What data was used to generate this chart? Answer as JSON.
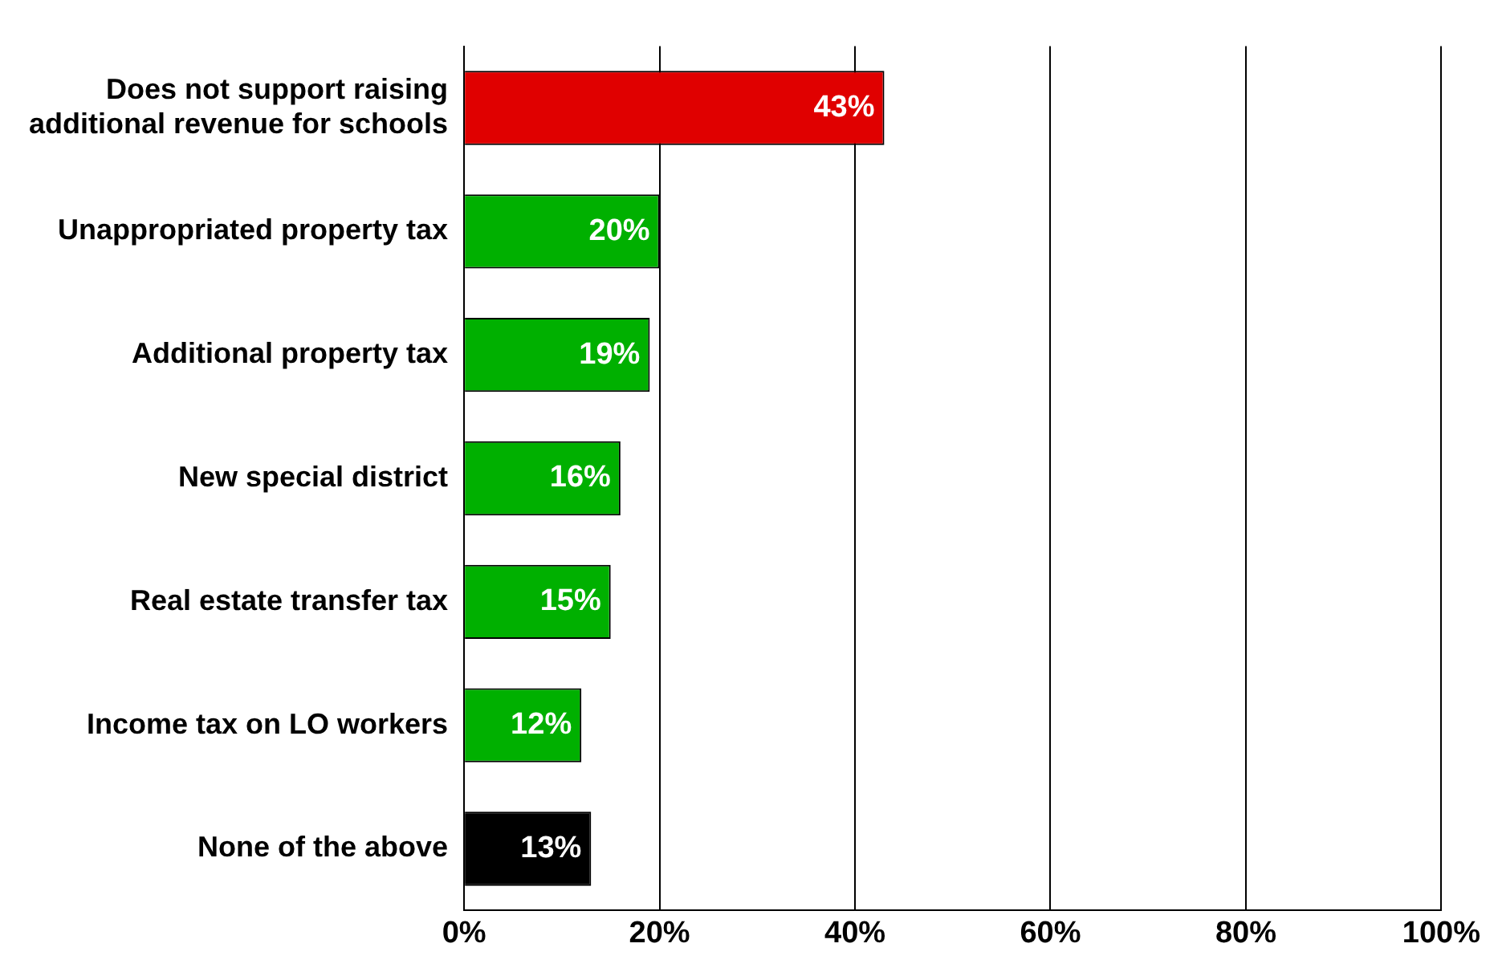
{
  "chart_data": {
    "type": "bar",
    "orientation": "horizontal",
    "categories": [
      "Does not support raising additional revenue for schools",
      "Unappropriated property tax",
      "Additional property tax",
      "New special district",
      "Real estate transfer tax",
      "Income tax on LO workers",
      "None of the above"
    ],
    "values": [
      43,
      20,
      19,
      16,
      15,
      12,
      13
    ],
    "colors": [
      "#e00000",
      "#00b000",
      "#00b000",
      "#00b000",
      "#00b000",
      "#00b000",
      "#000000"
    ],
    "value_labels": [
      "43%",
      "20%",
      "19%",
      "16%",
      "15%",
      "12%",
      "13%"
    ],
    "xlim": [
      0,
      100
    ],
    "xticks": [
      {
        "value": 0,
        "label": "0%"
      },
      {
        "value": 20,
        "label": "20%"
      },
      {
        "value": 40,
        "label": "40%"
      },
      {
        "value": 60,
        "label": "60%"
      },
      {
        "value": 80,
        "label": "80%"
      },
      {
        "value": 100,
        "label": "100%"
      }
    ],
    "grid": "x",
    "legend": false
  }
}
